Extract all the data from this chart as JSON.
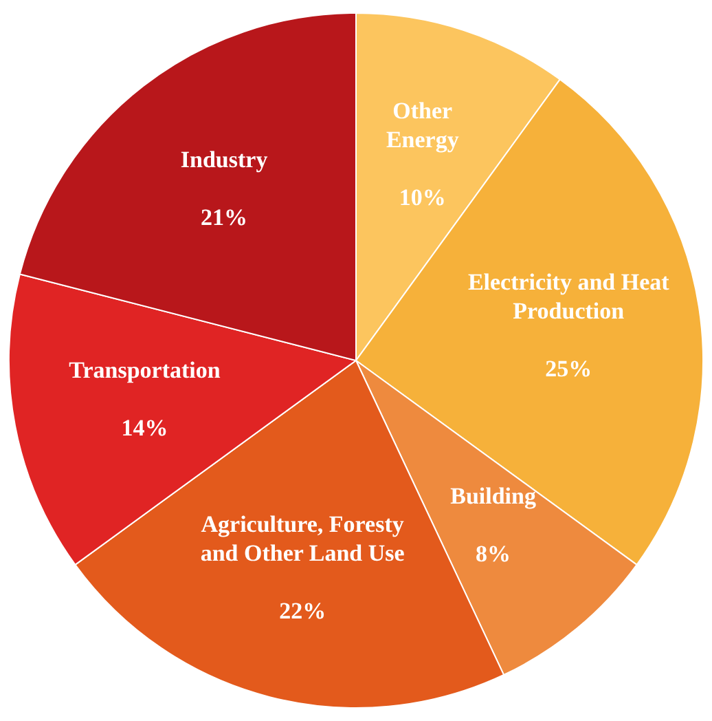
{
  "chart_data": {
    "type": "pie",
    "categories": [
      "Other Energy",
      "Electricity and Heat Production",
      "Building",
      "Agriculture, Foresty and Other Land Use",
      "Transportation",
      "Industry"
    ],
    "values": [
      10,
      25,
      8,
      22,
      14,
      21
    ],
    "colors": [
      "#fcc55e",
      "#f6b13a",
      "#ee8a3e",
      "#e35a1c",
      "#e02424",
      "#b8171b"
    ],
    "value_labels": [
      "10%",
      "25%",
      "8%",
      "22%",
      "14%",
      "21%"
    ],
    "legend": false
  }
}
